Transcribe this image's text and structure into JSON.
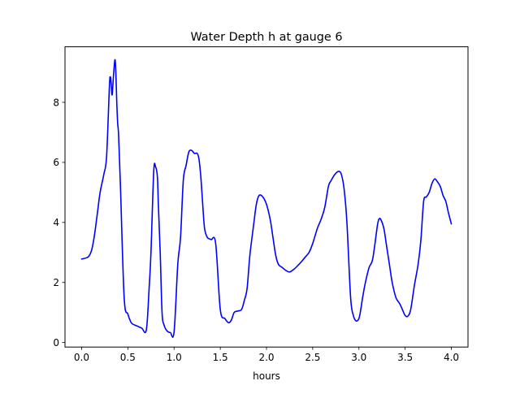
{
  "chart_data": {
    "type": "line",
    "title": "Water Depth h at gauge 6",
    "xlabel": "hours",
    "ylabel": "",
    "xlim": [
      -0.18,
      4.18
    ],
    "ylim": [
      -0.15,
      9.85
    ],
    "xticks": [
      0.0,
      0.5,
      1.0,
      1.5,
      2.0,
      2.5,
      3.0,
      3.5,
      4.0
    ],
    "xtick_labels": [
      "0.0",
      "0.5",
      "1.0",
      "1.5",
      "2.0",
      "2.5",
      "3.0",
      "3.5",
      "4.0"
    ],
    "yticks": [
      0,
      2,
      4,
      6,
      8
    ],
    "ytick_labels": [
      "0",
      "2",
      "4",
      "6",
      "8"
    ],
    "grid": false,
    "line_color": "#0000ff",
    "series": [
      {
        "x": [
          0.0,
          0.05,
          0.08,
          0.11,
          0.14,
          0.17,
          0.2,
          0.24,
          0.27,
          0.3,
          0.31,
          0.32,
          0.33,
          0.345,
          0.36,
          0.37,
          0.38,
          0.39,
          0.4,
          0.42,
          0.46,
          0.5,
          0.53,
          0.55,
          0.6,
          0.65,
          0.7,
          0.73,
          0.75,
          0.78,
          0.8,
          0.82,
          0.83,
          0.85,
          0.87,
          0.89,
          0.92,
          0.96,
          1.0,
          1.04,
          1.07,
          1.1,
          1.13,
          1.16,
          1.19,
          1.22,
          1.25,
          1.27,
          1.29,
          1.31,
          1.33,
          1.36,
          1.4,
          1.45,
          1.5,
          1.55,
          1.59,
          1.62,
          1.65,
          1.69,
          1.73,
          1.76,
          1.79,
          1.82,
          1.86,
          1.89,
          1.92,
          1.96,
          2.0,
          2.04,
          2.07,
          2.1,
          2.13,
          2.17,
          2.21,
          2.25,
          2.3,
          2.35,
          2.38,
          2.42,
          2.46,
          2.5,
          2.55,
          2.59,
          2.63,
          2.67,
          2.7,
          2.74,
          2.78,
          2.81,
          2.84,
          2.87,
          2.91,
          2.94,
          2.97,
          3.0,
          3.02,
          3.04,
          3.07,
          3.11,
          3.15,
          3.2,
          3.22,
          3.24,
          3.27,
          3.3,
          3.33,
          3.36,
          3.4,
          3.44,
          3.47,
          3.5,
          3.53,
          3.56,
          3.6,
          3.64,
          3.67,
          3.7,
          3.73,
          3.76,
          3.79,
          3.82,
          3.85,
          3.88,
          3.91,
          3.94,
          3.97,
          4.0
        ],
        "y": [
          2.78,
          2.82,
          2.88,
          3.1,
          3.6,
          4.3,
          5.0,
          5.6,
          6.2,
          8.5,
          8.85,
          8.6,
          8.25,
          8.9,
          9.42,
          9.0,
          8.0,
          7.3,
          6.9,
          5.2,
          1.5,
          0.95,
          0.7,
          0.62,
          0.55,
          0.48,
          0.42,
          1.8,
          3.0,
          5.7,
          5.85,
          5.5,
          4.6,
          3.0,
          1.0,
          0.6,
          0.4,
          0.33,
          0.35,
          2.6,
          3.5,
          5.4,
          5.9,
          6.35,
          6.4,
          6.3,
          6.3,
          6.1,
          5.5,
          4.6,
          3.8,
          3.5,
          3.43,
          3.3,
          1.1,
          0.8,
          0.66,
          0.75,
          1.0,
          1.05,
          1.1,
          1.4,
          1.8,
          2.9,
          3.9,
          4.6,
          4.9,
          4.85,
          4.6,
          4.1,
          3.5,
          2.9,
          2.6,
          2.5,
          2.4,
          2.35,
          2.45,
          2.6,
          2.7,
          2.85,
          3.0,
          3.3,
          3.8,
          4.1,
          4.5,
          5.2,
          5.4,
          5.6,
          5.7,
          5.6,
          5.1,
          4.0,
          1.5,
          0.9,
          0.72,
          0.8,
          1.1,
          1.5,
          2.0,
          2.5,
          2.8,
          3.9,
          4.12,
          4.08,
          3.8,
          3.2,
          2.6,
          2.0,
          1.5,
          1.3,
          1.1,
          0.9,
          0.88,
          1.1,
          1.9,
          2.6,
          3.4,
          4.7,
          4.85,
          5.0,
          5.3,
          5.45,
          5.35,
          5.2,
          4.9,
          4.7,
          4.3,
          3.95
        ]
      }
    ]
  }
}
